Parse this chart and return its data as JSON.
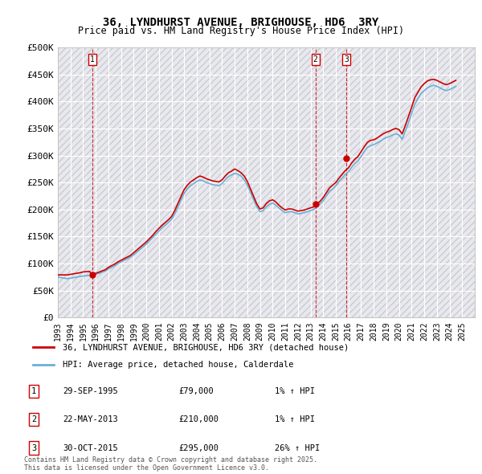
{
  "title": "36, LYNDHURST AVENUE, BRIGHOUSE, HD6  3RY",
  "subtitle": "Price paid vs. HM Land Registry's House Price Index (HPI)",
  "ylim": [
    0,
    500000
  ],
  "yticks": [
    0,
    50000,
    100000,
    150000,
    200000,
    250000,
    300000,
    350000,
    400000,
    450000,
    500000
  ],
  "ytick_labels": [
    "£0",
    "£50K",
    "£100K",
    "£150K",
    "£200K",
    "£250K",
    "£300K",
    "£350K",
    "£400K",
    "£450K",
    "£500K"
  ],
  "xlim_start": 1993,
  "xlim_end": 2026,
  "background_color": "#ffffff",
  "plot_bg_color": "#e8e8f0",
  "grid_color": "#ffffff",
  "hpi_color": "#6ab0d8",
  "price_color": "#cc0000",
  "sale1_date": 1995.75,
  "sale1_price": 79000,
  "sale2_date": 2013.39,
  "sale2_price": 210000,
  "sale3_date": 2015.83,
  "sale3_price": 295000,
  "legend_label1": "36, LYNDHURST AVENUE, BRIGHOUSE, HD6 3RY (detached house)",
  "legend_label2": "HPI: Average price, detached house, Calderdale",
  "table_entries": [
    {
      "num": "1",
      "date": "29-SEP-1995",
      "price": "£79,000",
      "change": "1% ↑ HPI"
    },
    {
      "num": "2",
      "date": "22-MAY-2013",
      "price": "£210,000",
      "change": "1% ↑ HPI"
    },
    {
      "num": "3",
      "date": "30-OCT-2015",
      "price": "£295,000",
      "change": "26% ↑ HPI"
    }
  ],
  "footnote": "Contains HM Land Registry data © Crown copyright and database right 2025.\nThis data is licensed under the Open Government Licence v3.0.",
  "hpi_data_x": [
    1993.0,
    1993.25,
    1993.5,
    1993.75,
    1994.0,
    1994.25,
    1994.5,
    1994.75,
    1995.0,
    1995.25,
    1995.5,
    1995.75,
    1996.0,
    1996.25,
    1996.5,
    1996.75,
    1997.0,
    1997.25,
    1997.5,
    1997.75,
    1998.0,
    1998.25,
    1998.5,
    1998.75,
    1999.0,
    1999.25,
    1999.5,
    1999.75,
    2000.0,
    2000.25,
    2000.5,
    2000.75,
    2001.0,
    2001.25,
    2001.5,
    2001.75,
    2002.0,
    2002.25,
    2002.5,
    2002.75,
    2003.0,
    2003.25,
    2003.5,
    2003.75,
    2004.0,
    2004.25,
    2004.5,
    2004.75,
    2005.0,
    2005.25,
    2005.5,
    2005.75,
    2006.0,
    2006.25,
    2006.5,
    2006.75,
    2007.0,
    2007.25,
    2007.5,
    2007.75,
    2008.0,
    2008.25,
    2008.5,
    2008.75,
    2009.0,
    2009.25,
    2009.5,
    2009.75,
    2010.0,
    2010.25,
    2010.5,
    2010.75,
    2011.0,
    2011.25,
    2011.5,
    2011.75,
    2012.0,
    2012.25,
    2012.5,
    2012.75,
    2013.0,
    2013.25,
    2013.5,
    2013.75,
    2014.0,
    2014.25,
    2014.5,
    2014.75,
    2015.0,
    2015.25,
    2015.5,
    2015.75,
    2016.0,
    2016.25,
    2016.5,
    2016.75,
    2017.0,
    2017.25,
    2017.5,
    2017.75,
    2018.0,
    2018.25,
    2018.5,
    2018.75,
    2019.0,
    2019.25,
    2019.5,
    2019.75,
    2020.0,
    2020.25,
    2020.5,
    2020.75,
    2021.0,
    2021.25,
    2021.5,
    2021.75,
    2022.0,
    2022.25,
    2022.5,
    2022.75,
    2023.0,
    2023.25,
    2023.5,
    2023.75,
    2024.0,
    2024.25,
    2024.5
  ],
  "hpi_data_y": [
    75000,
    74000,
    73000,
    72000,
    73000,
    74000,
    75000,
    76000,
    77000,
    77500,
    78000,
    79000,
    80000,
    82000,
    84000,
    86000,
    90000,
    93000,
    96000,
    100000,
    103000,
    106000,
    109000,
    112000,
    116000,
    121000,
    126000,
    131000,
    136000,
    142000,
    148000,
    154000,
    160000,
    166000,
    171000,
    176000,
    182000,
    192000,
    204000,
    218000,
    230000,
    238000,
    244000,
    248000,
    252000,
    255000,
    253000,
    250000,
    248000,
    246000,
    245000,
    244000,
    248000,
    255000,
    261000,
    264000,
    267000,
    265000,
    262000,
    255000,
    245000,
    232000,
    218000,
    205000,
    196000,
    198000,
    205000,
    210000,
    212000,
    208000,
    203000,
    198000,
    194000,
    196000,
    196000,
    194000,
    192000,
    193000,
    194000,
    196000,
    198000,
    200000,
    205000,
    210000,
    216000,
    225000,
    234000,
    238000,
    244000,
    252000,
    258000,
    265000,
    270000,
    278000,
    285000,
    290000,
    298000,
    307000,
    315000,
    318000,
    320000,
    323000,
    326000,
    330000,
    333000,
    335000,
    338000,
    340000,
    338000,
    330000,
    345000,
    360000,
    378000,
    395000,
    405000,
    415000,
    420000,
    425000,
    428000,
    430000,
    428000,
    425000,
    422000,
    420000,
    422000,
    425000,
    428000
  ],
  "price_data_x": [
    1993.0,
    1993.25,
    1993.5,
    1993.75,
    1994.0,
    1994.25,
    1994.5,
    1994.75,
    1995.0,
    1995.25,
    1995.5,
    1995.75,
    1996.0,
    1996.25,
    1996.5,
    1996.75,
    1997.0,
    1997.25,
    1997.5,
    1997.75,
    1998.0,
    1998.25,
    1998.5,
    1998.75,
    1999.0,
    1999.25,
    1999.5,
    1999.75,
    2000.0,
    2000.25,
    2000.5,
    2000.75,
    2001.0,
    2001.25,
    2001.5,
    2001.75,
    2002.0,
    2002.25,
    2002.5,
    2002.75,
    2003.0,
    2003.25,
    2003.5,
    2003.75,
    2004.0,
    2004.25,
    2004.5,
    2004.75,
    2005.0,
    2005.25,
    2005.5,
    2005.75,
    2006.0,
    2006.25,
    2006.5,
    2006.75,
    2007.0,
    2007.25,
    2007.5,
    2007.75,
    2008.0,
    2008.25,
    2008.5,
    2008.75,
    2009.0,
    2009.25,
    2009.5,
    2009.75,
    2010.0,
    2010.25,
    2010.5,
    2010.75,
    2011.0,
    2011.25,
    2011.5,
    2011.75,
    2012.0,
    2012.25,
    2012.5,
    2012.75,
    2013.0,
    2013.25,
    2013.5,
    2013.75,
    2014.0,
    2014.25,
    2014.5,
    2014.75,
    2015.0,
    2015.25,
    2015.5,
    2015.75,
    2016.0,
    2016.25,
    2016.5,
    2016.75,
    2017.0,
    2017.25,
    2017.5,
    2017.75,
    2018.0,
    2018.25,
    2018.5,
    2018.75,
    2019.0,
    2019.25,
    2019.5,
    2019.75,
    2020.0,
    2020.25,
    2020.5,
    2020.75,
    2021.0,
    2021.25,
    2021.5,
    2021.75,
    2022.0,
    2022.25,
    2022.5,
    2022.75,
    2023.0,
    2023.25,
    2023.5,
    2023.75,
    2024.0,
    2024.25,
    2024.5
  ],
  "price_data_y": [
    79000,
    79000,
    79000,
    79000,
    80000,
    81000,
    82000,
    83000,
    84500,
    85000,
    85500,
    79000,
    82000,
    84000,
    86500,
    88500,
    93000,
    96000,
    99000,
    103000,
    106000,
    109000,
    112000,
    115000,
    120000,
    125000,
    130000,
    135000,
    140000,
    146000,
    152000,
    159000,
    165000,
    171000,
    176000,
    181000,
    187000,
    198000,
    211000,
    224000,
    237000,
    245000,
    251000,
    255000,
    259000,
    262000,
    260000,
    257000,
    255000,
    253000,
    252000,
    251000,
    255000,
    262000,
    268000,
    271000,
    275000,
    272000,
    268000,
    262000,
    252000,
    238000,
    224000,
    210000,
    201000,
    203000,
    211000,
    216000,
    218000,
    214000,
    208000,
    203000,
    199000,
    201000,
    201000,
    199000,
    197000,
    198000,
    199000,
    201000,
    203000,
    205000,
    210000,
    215000,
    222000,
    231000,
    240000,
    245000,
    250000,
    258000,
    265000,
    272000,
    277000,
    286000,
    293000,
    298000,
    307000,
    316000,
    324000,
    328000,
    329000,
    332000,
    336000,
    340000,
    343000,
    345000,
    348000,
    350000,
    348000,
    340000,
    355000,
    372000,
    389000,
    407000,
    417000,
    427000,
    433000,
    438000,
    440000,
    441000,
    439000,
    436000,
    433000,
    431000,
    433000,
    436000,
    439000
  ]
}
